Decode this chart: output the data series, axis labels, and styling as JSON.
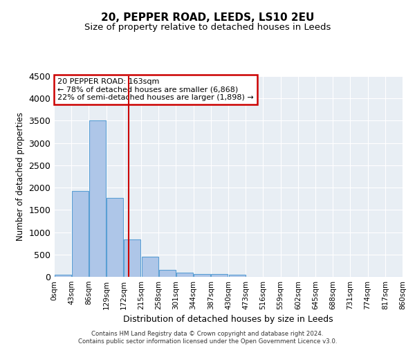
{
  "title1": "20, PEPPER ROAD, LEEDS, LS10 2EU",
  "title2": "Size of property relative to detached houses in Leeds",
  "xlabel": "Distribution of detached houses by size in Leeds",
  "ylabel": "Number of detached properties",
  "bin_labels": [
    "0sqm",
    "43sqm",
    "86sqm",
    "129sqm",
    "172sqm",
    "215sqm",
    "258sqm",
    "301sqm",
    "344sqm",
    "387sqm",
    "430sqm",
    "473sqm",
    "516sqm",
    "559sqm",
    "602sqm",
    "645sqm",
    "688sqm",
    "731sqm",
    "774sqm",
    "817sqm",
    "860sqm"
  ],
  "bar_values": [
    50,
    1920,
    3500,
    1770,
    840,
    450,
    160,
    100,
    65,
    55,
    40,
    0,
    0,
    0,
    0,
    0,
    0,
    0,
    0,
    0
  ],
  "bar_color": "#aec6e8",
  "bar_edge_color": "#5a9fd4",
  "background_color": "#e8eef4",
  "grid_color": "#ffffff",
  "ylim": [
    0,
    4500
  ],
  "yticks": [
    0,
    500,
    1000,
    1500,
    2000,
    2500,
    3000,
    3500,
    4000,
    4500
  ],
  "annotation_text": "20 PEPPER ROAD: 163sqm\n← 78% of detached houses are smaller (6,868)\n22% of semi-detached houses are larger (1,898) →",
  "annotation_box_color": "#ffffff",
  "annotation_border_color": "#cc0000",
  "footer1": "Contains HM Land Registry data © Crown copyright and database right 2024.",
  "footer2": "Contains public sector information licensed under the Open Government Licence v3.0.",
  "vline_color": "#cc0000",
  "bin_width": 43,
  "property_size": 163
}
